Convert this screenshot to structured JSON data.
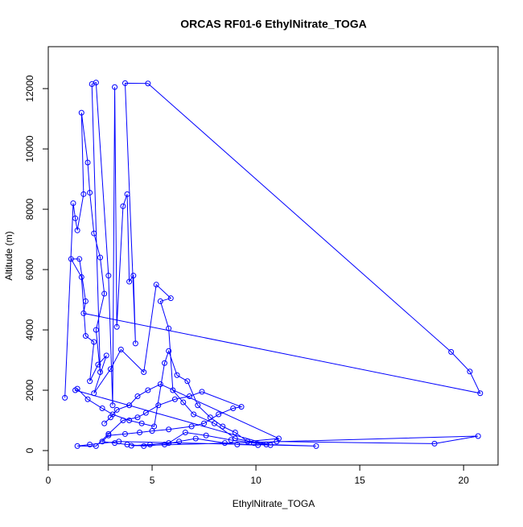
{
  "chart_data": {
    "type": "line",
    "title": "ORCAS RF01-6 EthylNitrate_TOGA",
    "x_label": "EthylNitrate_TOGA",
    "y_label": "Altitude (m)",
    "color": "#0000ff",
    "xlim": [
      0,
      21.66
    ],
    "ylim": [
      -480,
      13390
    ],
    "xticks": [
      0,
      5,
      10,
      15,
      20
    ],
    "yticks": [
      0,
      2000,
      4000,
      6000,
      8000,
      10000,
      12000
    ],
    "x": [
      0.8,
      1.2,
      1.3,
      1.4,
      1.7,
      1.6,
      1.9,
      2.0,
      2.2,
      2.5,
      2.7,
      2.3,
      2.5,
      2.1,
      2.3,
      2.9,
      3.1,
      3.2,
      3.3,
      3.6,
      3.8,
      3.9,
      4.1,
      4.2,
      3.7,
      4.8,
      19.4,
      20.3,
      20.8,
      1.7,
      1.8,
      1.5,
      1.1,
      1.6,
      1.8,
      2.2,
      2.0,
      2.4,
      2.8,
      2.2,
      3.0,
      3.5,
      4.6,
      5.2,
      5.9,
      5.4,
      5.8,
      6.0,
      6.5,
      7.0,
      8.0,
      9.0,
      10.5,
      12.9,
      3.4,
      2.0,
      1.4,
      2.3,
      2.9,
      3.6,
      4.3,
      4.7,
      5.3,
      6.1,
      6.8,
      7.4,
      9.3,
      8.9,
      8.2,
      7.5,
      6.9,
      5.8,
      5.0,
      4.4,
      3.7,
      2.9,
      2.6,
      3.2,
      3.8,
      4.6,
      5.6,
      6.3,
      7.1,
      8.5,
      9.1,
      10.1,
      11.0,
      18.6,
      20.7,
      4.0,
      4.9,
      5.8,
      6.6,
      7.6,
      8.8,
      9.9,
      10.7,
      1.3,
      1.4,
      1.9,
      2.6,
      3.1,
      3.9,
      4.5,
      5.1,
      5.6,
      5.8,
      6.2,
      6.7,
      7.2,
      7.8,
      8.4,
      9.0,
      9.6,
      11.1,
      5.4,
      4.8,
      4.3,
      3.9,
      3.3,
      3.0,
      2.7
    ],
    "values": [
      1750,
      8200,
      7700,
      7300,
      8500,
      11200,
      9550,
      8550,
      7200,
      6400,
      5200,
      4000,
      2600,
      12150,
      12200,
      5800,
      1500,
      12050,
      4100,
      8100,
      8500,
      5600,
      5800,
      3550,
      12180,
      12170,
      3270,
      2620,
      1900,
      4550,
      4950,
      6350,
      6350,
      5750,
      3800,
      3600,
      2300,
      2850,
      3150,
      1900,
      2700,
      3350,
      2600,
      5500,
      5050,
      4950,
      4050,
      2000,
      1600,
      1200,
      900,
      400,
      200,
      150,
      300,
      200,
      150,
      150,
      550,
      1000,
      1100,
      1250,
      1500,
      1700,
      1800,
      1950,
      1450,
      1400,
      1200,
      900,
      800,
      700,
      650,
      600,
      550,
      500,
      300,
      250,
      200,
      150,
      200,
      300,
      400,
      250,
      200,
      180,
      300,
      230,
      480,
      160,
      200,
      250,
      600,
      500,
      350,
      250,
      180,
      2000,
      2050,
      1700,
      1400,
      1200,
      1000,
      900,
      800,
      2900,
      3300,
      2500,
      2300,
      1500,
      1100,
      800,
      600,
      300,
      400,
      2200,
      2000,
      1800,
      1500,
      1350,
      1100,
      900
    ]
  }
}
